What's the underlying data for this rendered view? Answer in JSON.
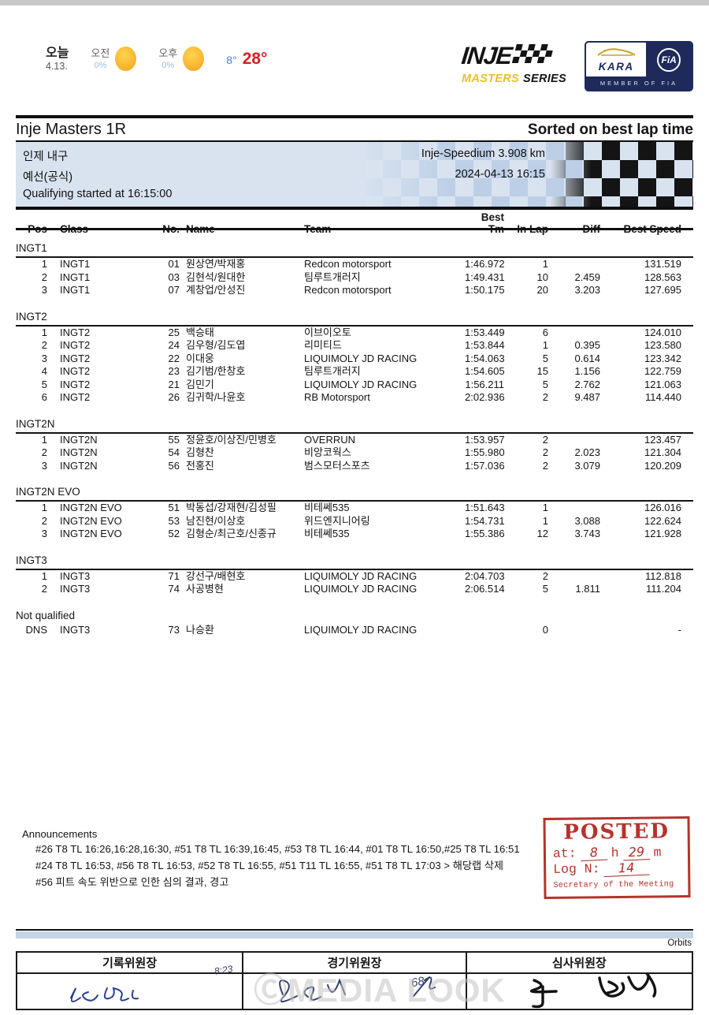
{
  "weather": {
    "today_label": "오늘",
    "today_date": "4.13.",
    "am_label": "오전",
    "am_pct": "0%",
    "pm_label": "오후",
    "pm_pct": "0%",
    "temp_low": "8°",
    "temp_high": "28°"
  },
  "logos": {
    "inje_wordmark": "INJE",
    "masters": "MASTERS",
    "series": "SERIES",
    "kara": "KARA",
    "fia": "FiA",
    "member_of_fia": "MEMBER OF FIA"
  },
  "title_bar": {
    "title": "Inje Masters 1R",
    "sort_note": "Sorted on best lap time"
  },
  "event": {
    "name": "인제 내구",
    "track": "Inje-Speedium 3.908 km",
    "session": "예선(공식)",
    "datetime": "2024-04-13 16:15",
    "started_note": "Qualifying started at 16:15:00"
  },
  "table": {
    "headers": [
      "Pos",
      "Class",
      "No.",
      "Name",
      "Team",
      "Best Tm",
      "In Lap",
      "Diff",
      "Best Speed"
    ],
    "groups": [
      {
        "label": "INGT1",
        "ruled": true,
        "rows": [
          [
            "1",
            "INGT1",
            "01",
            "원상연/박재홍",
            "Redcon motorsport",
            "1:46.972",
            "1",
            "",
            "131.519"
          ],
          [
            "2",
            "INGT1",
            "03",
            "김현석/원대한",
            "팀루트개러지",
            "1:49.431",
            "10",
            "2.459",
            "128.563"
          ],
          [
            "3",
            "INGT1",
            "07",
            "계창업/안성진",
            "Redcon motorsport",
            "1:50.175",
            "20",
            "3.203",
            "127.695"
          ]
        ]
      },
      {
        "label": "INGT2",
        "ruled": true,
        "rows": [
          [
            "1",
            "INGT2",
            "25",
            "백승태",
            "이브이오토",
            "1:53.449",
            "6",
            "",
            "124.010"
          ],
          [
            "2",
            "INGT2",
            "24",
            "김우형/김도엽",
            "리미티드",
            "1:53.844",
            "1",
            "0.395",
            "123.580"
          ],
          [
            "3",
            "INGT2",
            "22",
            "이대웅",
            "LIQUIMOLY JD RACING",
            "1:54.063",
            "5",
            "0.614",
            "123.342"
          ],
          [
            "4",
            "INGT2",
            "23",
            "김기범/한창호",
            "팀루트개러지",
            "1:54.605",
            "15",
            "1.156",
            "122.759"
          ],
          [
            "5",
            "INGT2",
            "21",
            "김민기",
            "LIQUIMOLY JD RACING",
            "1:56.211",
            "5",
            "2.762",
            "121.063"
          ],
          [
            "6",
            "INGT2",
            "26",
            "김귀학/나윤호",
            "RB Motorsport",
            "2:02.936",
            "2",
            "9.487",
            "114.440"
          ]
        ]
      },
      {
        "label": "INGT2N",
        "ruled": true,
        "rows": [
          [
            "1",
            "INGT2N",
            "55",
            "정윤호/이상진/민병호",
            "OVERRUN",
            "1:53.957",
            "2",
            "",
            "123.457"
          ],
          [
            "2",
            "INGT2N",
            "54",
            "김형찬",
            "비앙코웍스",
            "1:55.980",
            "2",
            "2.023",
            "121.304"
          ],
          [
            "3",
            "INGT2N",
            "56",
            "전홍진",
            "범스모터스포츠",
            "1:57.036",
            "2",
            "3.079",
            "120.209"
          ]
        ]
      },
      {
        "label": "INGT2N EVO",
        "ruled": true,
        "rows": [
          [
            "1",
            "INGT2N EVO",
            "51",
            "박동섭/강재현/김성필",
            "비테쎄535",
            "1:51.643",
            "1",
            "",
            "126.016"
          ],
          [
            "2",
            "INGT2N EVO",
            "53",
            "남진현/이상호",
            "위드엔지니어링",
            "1:54.731",
            "1",
            "3.088",
            "122.624"
          ],
          [
            "3",
            "INGT2N EVO",
            "52",
            "김형순/최근호/신종규",
            "비테쎄535",
            "1:55.386",
            "12",
            "3.743",
            "121.928"
          ]
        ]
      },
      {
        "label": "INGT3",
        "ruled": true,
        "rows": [
          [
            "1",
            "INGT3",
            "71",
            "강선구/배현호",
            "LIQUIMOLY JD RACING",
            "2:04.703",
            "2",
            "",
            "112.818"
          ],
          [
            "2",
            "INGT3",
            "74",
            "사공병현",
            "LIQUIMOLY JD RACING",
            "2:06.514",
            "5",
            "1.811",
            "111.204"
          ]
        ]
      },
      {
        "label": "Not qualified",
        "ruled": false,
        "rows": [
          [
            "DNS",
            "INGT3",
            "73",
            "나승환",
            "LIQUIMOLY JD RACING",
            "",
            "0",
            "",
            "-"
          ]
        ]
      }
    ]
  },
  "announcements": {
    "title": "Announcements",
    "lines": [
      "#26 T8 TL 16:26,16:28,16:30, #51 T8 TL 16:39,16:45, #53 T8 TL 16:44, #01 T8 TL 16:50,#25 T8 TL 16:51",
      "#24 T8 TL 16:53, #56 T8 TL 16:53, #52 T8 TL 16:55, #51 T11 TL 16:55, #51 T8 TL 17:03 > 해당랩 삭제",
      "#56 피트 속도 위반으로 인한 심의 결과, 경고"
    ]
  },
  "stamp": {
    "title": "POSTED",
    "at_label": "at:",
    "hour": "8",
    "hour_unit": "h",
    "minute": "29",
    "minute_unit": "m",
    "log_label": "Log N:",
    "log_number": "14",
    "footer": "Secretary of the Meeting"
  },
  "footer": {
    "orbits": "Orbits",
    "signature_headers": [
      "기록위원장",
      "경기위원장",
      "심사위원장"
    ],
    "time_note": "8:23",
    "sig2_note": "68"
  },
  "watermark": "ⒸMEDIA LOOK",
  "colors": {
    "stamp_red": "#b5332c",
    "info_box_bg": "#d9e3f0",
    "navy": "#1e2a5a",
    "sun_yellow": "#f2a21c",
    "temp_low_blue": "#4a7fd4",
    "temp_high_red": "#d62121",
    "masters_yellow": "#e5c227",
    "ink_blue": "#2c3f8f"
  }
}
